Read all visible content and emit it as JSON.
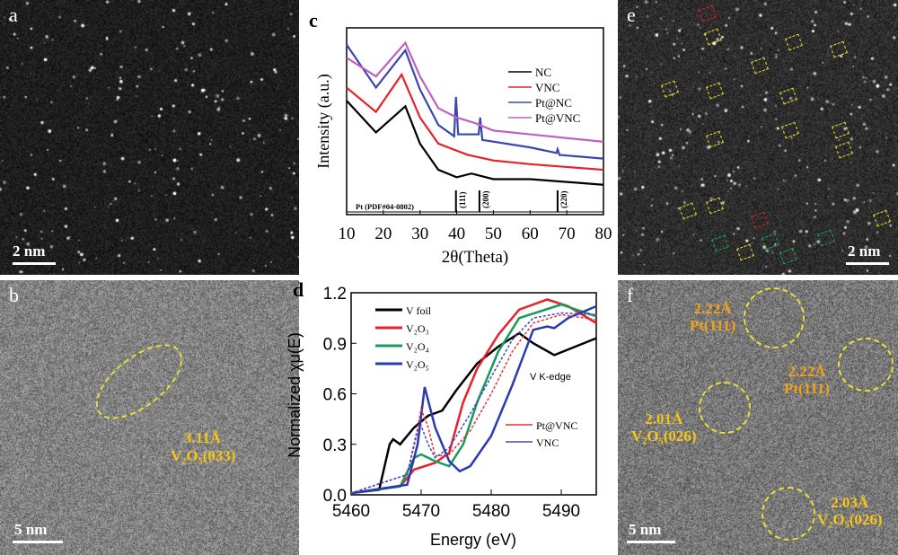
{
  "panels": {
    "a": {
      "label": "a",
      "scale_bar": "2 nm"
    },
    "b": {
      "label": "b",
      "scale_bar": "5 nm",
      "annotation_d": "3.11Å",
      "annotation_plane": "V₂O₅(033)"
    },
    "e": {
      "label": "e",
      "scale_bar": "2 nm"
    },
    "f": {
      "label": "f",
      "scale_bar": "5 nm",
      "annotations": [
        {
          "d": "2.22Å",
          "plane": "Pt(111)"
        },
        {
          "d": "2.22Å",
          "plane": "Pt(111)"
        },
        {
          "d": "2.01Å",
          "plane": "V₂O₅(026)"
        },
        {
          "d": "2.03Å",
          "plane": "V₂O₅(026)"
        }
      ]
    }
  },
  "chart_data": [
    {
      "panel": "c",
      "type": "line",
      "xlabel": "2θ(Theta)",
      "ylabel": "Intensity (a.u.)",
      "xlim": [
        10,
        80
      ],
      "ylim": [
        0,
        100
      ],
      "xticks": [
        10,
        20,
        30,
        40,
        50,
        60,
        70,
        80
      ],
      "legend_position": "top-right",
      "series": [
        {
          "name": "NC",
          "color": "#000000",
          "x": [
            10,
            18,
            26,
            30,
            35,
            40,
            44,
            50,
            60,
            80
          ],
          "y": [
            61,
            44,
            58,
            38,
            24,
            20,
            22,
            19,
            19,
            16
          ]
        },
        {
          "name": "VNC",
          "color": "#e8202a",
          "x": [
            10,
            18,
            25,
            30,
            35,
            43,
            50,
            60,
            80
          ],
          "y": [
            68,
            55,
            75,
            52,
            38,
            32,
            29,
            27,
            24
          ]
        },
        {
          "name": "Pt@NC",
          "color": "#3a46b0",
          "x": [
            10,
            18,
            26,
            30,
            35,
            39.3,
            39.8,
            40.4,
            46,
            46.4,
            47,
            60,
            67.2,
            67.5,
            68,
            80
          ],
          "y": [
            91,
            68,
            88,
            67,
            48,
            42,
            63,
            43,
            43,
            52,
            40,
            36,
            33,
            35,
            32,
            30
          ]
        },
        {
          "name": "Pt@VNC",
          "color": "#c060c0",
          "x": [
            10,
            18,
            26,
            30,
            35,
            40,
            45,
            50,
            60,
            80
          ],
          "y": [
            84,
            74,
            92,
            74,
            57,
            52,
            49,
            45,
            43,
            39
          ]
        }
      ],
      "reference": {
        "label": "Pt (PDF#04-0802)",
        "peaks": [
          {
            "x": 39.8,
            "hkl": "(111)"
          },
          {
            "x": 46.2,
            "hkl": "(200)"
          },
          {
            "x": 67.5,
            "hkl": "(220)"
          }
        ]
      }
    },
    {
      "panel": "d",
      "type": "line",
      "xlabel": "Energy (eV)",
      "ylabel": "Normalized χμ(E)",
      "xlim": [
        5460,
        5495
      ],
      "ylim": [
        0,
        1.2
      ],
      "xticks": [
        5460,
        5470,
        5480,
        5490
      ],
      "yticks": [
        "0.0",
        "0.3",
        "0.6",
        "0.9",
        "1.2"
      ],
      "annotation": "V K-edge",
      "series": [
        {
          "name": "V foil",
          "color": "#000000",
          "x": [
            5460,
            5464,
            5465.5,
            5466,
            5467,
            5469,
            5471,
            5473,
            5475,
            5478,
            5481,
            5484,
            5486,
            5489,
            5492,
            5495
          ],
          "y": [
            0.01,
            0.03,
            0.3,
            0.33,
            0.3,
            0.4,
            0.47,
            0.5,
            0.62,
            0.78,
            0.88,
            0.96,
            0.9,
            0.83,
            0.88,
            0.93
          ]
        },
        {
          "name": "V₂O₃",
          "color": "#e8202a",
          "x": [
            5460,
            5467,
            5469,
            5472,
            5474,
            5476,
            5478,
            5481,
            5484,
            5488,
            5491,
            5495
          ],
          "y": [
            0.01,
            0.05,
            0.15,
            0.19,
            0.25,
            0.55,
            0.75,
            0.95,
            1.1,
            1.16,
            1.12,
            1.02
          ]
        },
        {
          "name": "V₂O₄",
          "color": "#1a9a5a",
          "x": [
            5460,
            5467,
            5469,
            5470,
            5472,
            5474,
            5476,
            5478,
            5481,
            5484,
            5490,
            5495
          ],
          "y": [
            0.01,
            0.05,
            0.22,
            0.24,
            0.2,
            0.17,
            0.3,
            0.55,
            0.85,
            1.05,
            1.13,
            1.06
          ]
        },
        {
          "name": "V₂O₅",
          "color": "#2a3ab0",
          "x": [
            5460,
            5468,
            5469.5,
            5470.5,
            5472,
            5474,
            5475.5,
            5477,
            5480,
            5483,
            5486,
            5488,
            5489,
            5491,
            5495
          ],
          "y": [
            0.01,
            0.06,
            0.3,
            0.64,
            0.4,
            0.2,
            0.14,
            0.17,
            0.35,
            0.65,
            0.98,
            1.0,
            0.99,
            1.05,
            1.12
          ]
        },
        {
          "name": "Pt@VNC",
          "color": "#e8303a",
          "marker": true,
          "x": [
            5460,
            5468,
            5469.5,
            5470,
            5471,
            5472,
            5474,
            5477,
            5480,
            5483,
            5486,
            5490,
            5495
          ],
          "y": [
            0.01,
            0.12,
            0.4,
            0.51,
            0.4,
            0.23,
            0.24,
            0.38,
            0.6,
            0.85,
            1.02,
            1.07,
            1.04
          ]
        },
        {
          "name": "VNC",
          "color": "#4048c0",
          "marker": true,
          "x": [
            5460,
            5468,
            5469.5,
            5470,
            5471,
            5472,
            5474,
            5477,
            5480,
            5483,
            5486,
            5490,
            5495
          ],
          "y": [
            0.01,
            0.12,
            0.38,
            0.41,
            0.3,
            0.22,
            0.28,
            0.48,
            0.7,
            0.92,
            1.05,
            1.08,
            1.07
          ]
        }
      ]
    }
  ]
}
